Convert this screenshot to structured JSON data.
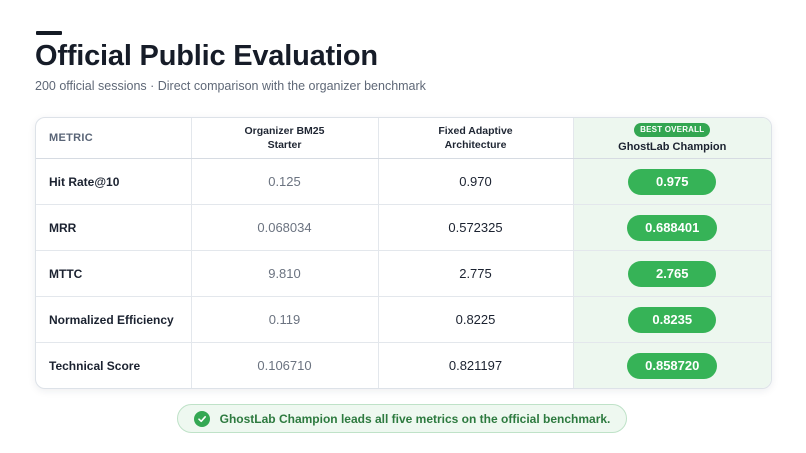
{
  "page": {
    "title": "Official Public Evaluation",
    "subtitle": "200 official sessions · Direct comparison with the organizer benchmark"
  },
  "table": {
    "headers": {
      "metric": "METRIC",
      "baseline": "Organizer BM25\nStarter",
      "adaptive": "Fixed Adaptive\nArchitecture",
      "champion_badge": "BEST OVERALL",
      "champion": "GhostLab Champion"
    },
    "rows": [
      {
        "metric": "Hit Rate@10",
        "baseline": "0.125",
        "adaptive": "0.970",
        "champion": "0.975"
      },
      {
        "metric": "MRR",
        "baseline": "0.068034",
        "adaptive": "0.572325",
        "champion": "0.688401"
      },
      {
        "metric": "MTTC",
        "baseline": "9.810",
        "adaptive": "2.775",
        "champion": "2.765"
      },
      {
        "metric": "Normalized Efficiency",
        "baseline": "0.119",
        "adaptive": "0.8225",
        "champion": "0.8235"
      },
      {
        "metric": "Technical Score",
        "baseline": "0.106710",
        "adaptive": "0.821197",
        "champion": "0.858720"
      }
    ]
  },
  "callout": {
    "icon": "check-circle-icon",
    "text": "GhostLab Champion leads all five metrics on the official benchmark."
  },
  "colors": {
    "accent_green": "#36b357",
    "champion_bg": "#edf7ef",
    "title": "#161c28"
  }
}
